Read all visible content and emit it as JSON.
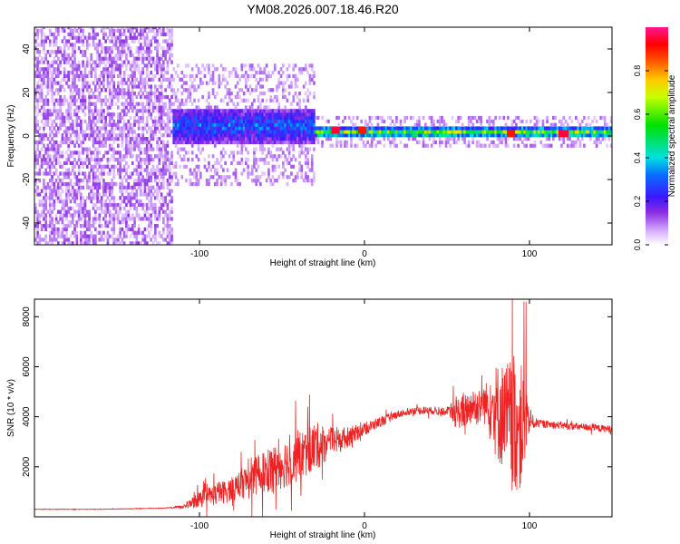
{
  "title": "YM08.2026.007.18.46.R20",
  "chart_data": [
    {
      "type": "heatmap",
      "xlabel": "Height of straight line (km)",
      "ylabel": "Frequency (Hz)",
      "xlim": [
        -200,
        150
      ],
      "ylim": [
        -50,
        50
      ],
      "x_ticks": [
        -100,
        0,
        100
      ],
      "y_ticks": [
        -40,
        -20,
        0,
        20,
        40
      ],
      "colorbar": {
        "label": "Normalized spectral amplitude",
        "range": [
          0,
          1
        ],
        "ticks": [
          0.0,
          0.2,
          0.4,
          0.6,
          0.8
        ]
      },
      "regions": [
        {
          "x_range": [
            -200,
            -117
          ],
          "freq_range": [
            -50,
            50
          ],
          "amplitude": 0.12
        },
        {
          "x_range": [
            -117,
            -30
          ],
          "freq_center": 4,
          "freq_halfwidth": 8,
          "amplitude": 0.35
        },
        {
          "x_range": [
            -30,
            150
          ],
          "freq_center": 1,
          "freq_halfwidth": 2,
          "amplitude": 0.7
        }
      ],
      "peaks": [
        {
          "x": -18,
          "freq": 1.5,
          "amplitude": 0.95
        },
        {
          "x": -2,
          "freq": 1.5,
          "amplitude": 0.9
        },
        {
          "x": 88,
          "freq": 1,
          "amplitude": 0.9
        },
        {
          "x": 120,
          "freq": 0,
          "amplitude": 0.95
        }
      ]
    },
    {
      "type": "line",
      "xlabel": "Height of straight line (km)",
      "ylabel": "SNR (10 * v/v)",
      "xlim": [
        -200,
        150
      ],
      "ylim": [
        0,
        8700
      ],
      "x_ticks": [
        -100,
        0,
        100
      ],
      "y_ticks": [
        2000,
        4000,
        6000,
        8000
      ],
      "color": "#ee2222",
      "series": [
        {
          "x": [
            -200,
            -160,
            -120,
            -110,
            -100,
            -90,
            -80,
            -70,
            -60,
            -50,
            -40,
            -30,
            -20,
            -10,
            0,
            10,
            20,
            30,
            40,
            50,
            55,
            60,
            65,
            70,
            75,
            80,
            85,
            90,
            95,
            100,
            105,
            110,
            120,
            130,
            140,
            150
          ],
          "values": [
            300,
            300,
            350,
            400,
            700,
            900,
            1100,
            1500,
            1800,
            2100,
            2400,
            2800,
            3000,
            3200,
            3500,
            3800,
            4100,
            4250,
            4250,
            4200,
            4150,
            4200,
            4400,
            4500,
            4550,
            4200,
            4000,
            3700,
            3600,
            3800,
            3750,
            3700,
            3650,
            3600,
            3550,
            3500
          ],
          "noise": [
            10,
            10,
            10,
            80,
            350,
            450,
            500,
            700,
            900,
            1000,
            1000,
            1000,
            600,
            400,
            250,
            200,
            150,
            150,
            150,
            150,
            600,
            700,
            700,
            800,
            900,
            2000,
            2200,
            2800,
            2500,
            400,
            150,
            150,
            150,
            150,
            150,
            150
          ]
        }
      ]
    }
  ]
}
